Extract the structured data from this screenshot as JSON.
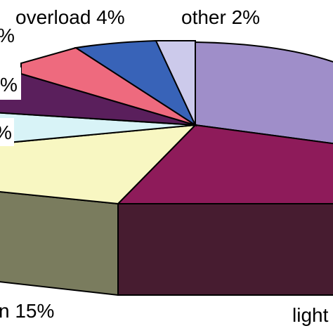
{
  "chart_data": {
    "type": "pie",
    "style": "3d",
    "slices": [
      {
        "label": "lightning",
        "value": null,
        "color": "#9f8ec9"
      },
      {
        "label": "",
        "value": null,
        "color": "#8e1b5a"
      },
      {
        "label": "",
        "value": 15,
        "color": "#f8f7c2"
      },
      {
        "label": "",
        "value": null,
        "color": "#d8f3f7"
      },
      {
        "label": "",
        "value": null,
        "color": "#5a1f5c"
      },
      {
        "label": "",
        "value": null,
        "color": "#ee6a7e"
      },
      {
        "label": "overload",
        "value": 4,
        "color": "#3863b8"
      },
      {
        "label": "other",
        "value": 2,
        "color": "#cccaeb"
      }
    ],
    "visible_labels": {
      "overload": "overload 4%",
      "other": "other 2%",
      "partial_1": "%",
      "partial_2": "%",
      "partial_3": "%",
      "bottom_left": "n 15%",
      "bottom_right": "light"
    },
    "side_colors": {
      "front_dark": "#471c30",
      "front_olive": "#7a7c5e"
    }
  }
}
